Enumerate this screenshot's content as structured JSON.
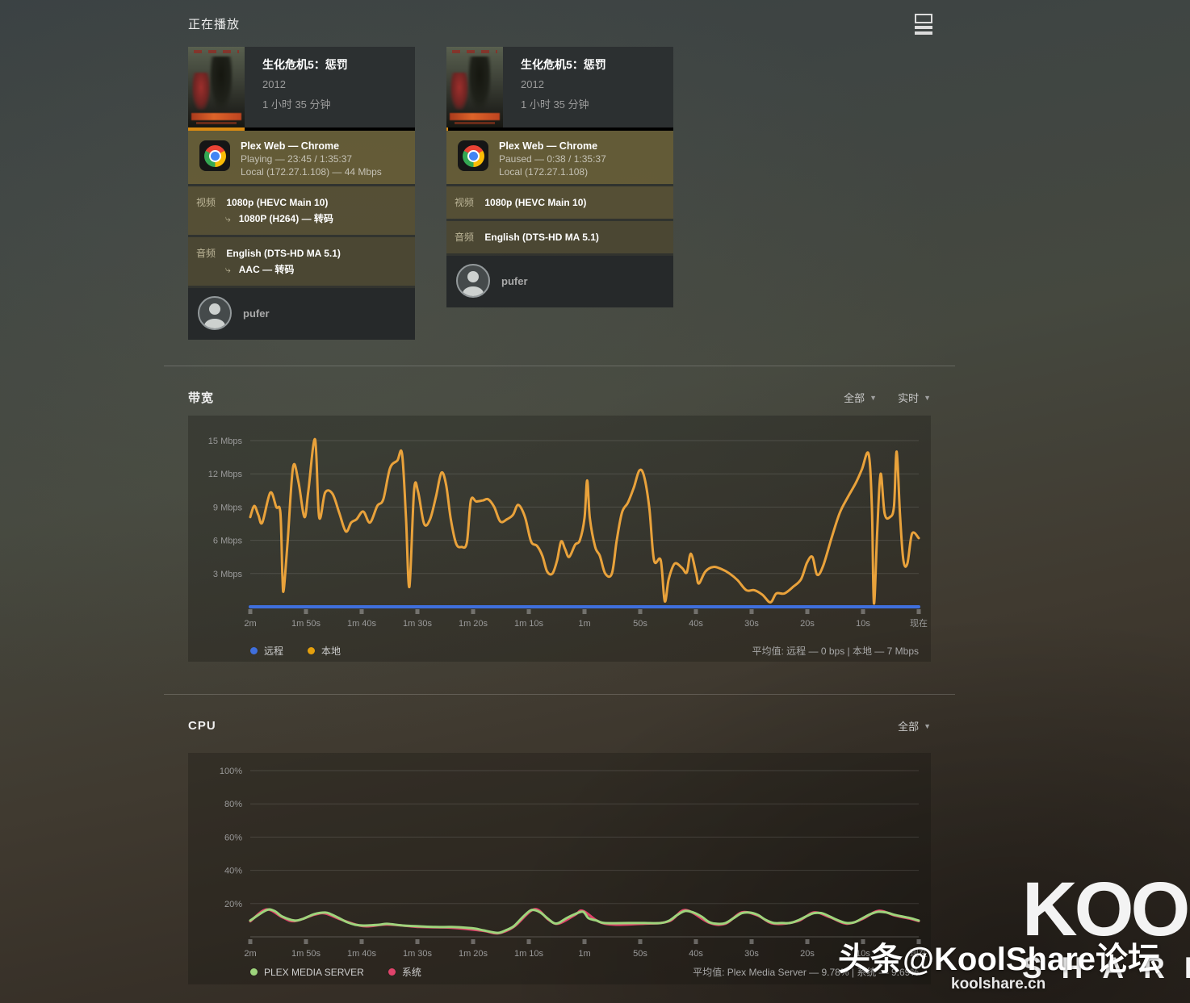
{
  "page": {
    "title": "正在播放"
  },
  "sessions": [
    {
      "title": "生化危机5：惩罚",
      "year": "2012",
      "duration": "1 小时 35 分钟",
      "player_line": "Plex Web  —  Chrome",
      "status_line": "Playing — 23:45 / 1:35:37",
      "network_line": "Local (172.27.1.108) — 44 Mbps",
      "progress_percent": 24.8,
      "video_label": "视频",
      "video_source": "1080p (HEVC Main 10)",
      "video_transcode": "1080P (H264) — 转码",
      "audio_label": "音频",
      "audio_source": "English (DTS-HD MA 5.1)",
      "audio_transcode": "AAC — 转码",
      "user": "pufer"
    },
    {
      "title": "生化危机5：惩罚",
      "year": "2012",
      "duration": "1 小时 35 分钟",
      "player_line": "Plex Web  —  Chrome",
      "status_line": "Paused — 0:38 / 1:35:37",
      "network_line": "Local (172.27.1.108)",
      "progress_percent": 0.8,
      "video_label": "视频",
      "video_source": "1080p (HEVC Main 10)",
      "audio_label": "音频",
      "audio_source": "English (DTS-HD MA 5.1)",
      "user": "pufer"
    }
  ],
  "bandwidth_section": {
    "title": "带宽",
    "filter_all": "全部",
    "filter_realtime": "实时",
    "legend": [
      {
        "label": "远程",
        "color": "#3f6fdd"
      },
      {
        "label": "本地",
        "color": "#e5a00d"
      }
    ],
    "average_text": "平均值: 远程 — 0 bps | 本地 — 7 Mbps"
  },
  "cpu_section": {
    "title": "CPU",
    "filter_all": "全部",
    "legend": [
      {
        "label": "PLEX MEDIA SERVER",
        "color": "#9ed47c"
      },
      {
        "label": "系统",
        "color": "#e0436b"
      }
    ],
    "average_text": "平均值: Plex Media Server — 9.78% | 系统 — 9.69%"
  },
  "chart_data": [
    {
      "type": "line",
      "title": "带宽",
      "unit": "Mbps",
      "ylim": [
        0,
        15
      ],
      "grid": true,
      "legend_position": "bottom-left",
      "y_ticks": [
        {
          "value": 3,
          "label": "3 Mbps"
        },
        {
          "value": 6,
          "label": "6 Mbps"
        },
        {
          "value": 9,
          "label": "9 Mbps"
        },
        {
          "value": 12,
          "label": "12 Mbps"
        },
        {
          "value": 15,
          "label": "15 Mbps"
        }
      ],
      "x_axis_labels": [
        "2m",
        "1m 50s",
        "1m 40s",
        "1m 30s",
        "1m 20s",
        "1m 10s",
        "1m",
        "50s",
        "40s",
        "30s",
        "20s",
        "10s",
        "现在"
      ],
      "series": [
        {
          "name": "远程",
          "color": "#3f6fdd",
          "width": 4,
          "points": [
            [
              0,
              0
            ],
            [
              100,
              0
            ]
          ]
        },
        {
          "name": "本地",
          "color": "#e9a23b",
          "width": 3,
          "points": [
            [
              0,
              8.1
            ],
            [
              0.6,
              9.1
            ],
            [
              1.2,
              8.3
            ],
            [
              1.8,
              7.6
            ],
            [
              3,
              10.3
            ],
            [
              3.9,
              9
            ],
            [
              4.5,
              8.5
            ],
            [
              4.8,
              3
            ],
            [
              5,
              1.5
            ],
            [
              5.6,
              6
            ],
            [
              6.4,
              12.6
            ],
            [
              7.2,
              11.3
            ],
            [
              8.1,
              8.1
            ],
            [
              8.7,
              10.5
            ],
            [
              9.7,
              15.1
            ],
            [
              10.3,
              8.1
            ],
            [
              11.2,
              10.3
            ],
            [
              12.3,
              10.2
            ],
            [
              13.3,
              8.5
            ],
            [
              14.3,
              6.8
            ],
            [
              15.1,
              7.6
            ],
            [
              15.9,
              7.9
            ],
            [
              16.9,
              8.6
            ],
            [
              17.9,
              7.6
            ],
            [
              19,
              9.1
            ],
            [
              19.9,
              9.7
            ],
            [
              20.9,
              12.5
            ],
            [
              22,
              13.2
            ],
            [
              22.7,
              13.8
            ],
            [
              23.3,
              8
            ],
            [
              23.8,
              1.8
            ],
            [
              24.5,
              10.5
            ],
            [
              25.1,
              10.4
            ],
            [
              26,
              7.5
            ],
            [
              26.9,
              7.9
            ],
            [
              27.8,
              10
            ],
            [
              28.6,
              12.1
            ],
            [
              29.3,
              11
            ],
            [
              30,
              7.9
            ],
            [
              30.8,
              5.7
            ],
            [
              31.6,
              5.4
            ],
            [
              32.4,
              5.8
            ],
            [
              33,
              9.6
            ],
            [
              33.8,
              9.5
            ],
            [
              34.8,
              9.6
            ],
            [
              35.6,
              9.7
            ],
            [
              36.5,
              9
            ],
            [
              37.4,
              7.7
            ],
            [
              38.4,
              7.9
            ],
            [
              39.3,
              8.3
            ],
            [
              40.1,
              9.2
            ],
            [
              41.1,
              8.1
            ],
            [
              42,
              5.9
            ],
            [
              42.9,
              5.5
            ],
            [
              43.7,
              4.6
            ],
            [
              44.4,
              3.2
            ],
            [
              45.2,
              3
            ],
            [
              45.9,
              4.2
            ],
            [
              46.5,
              5.9
            ],
            [
              47.1,
              5.2
            ],
            [
              47.7,
              4.5
            ],
            [
              48.6,
              5.6
            ],
            [
              49.3,
              6
            ],
            [
              50,
              8
            ],
            [
              50.4,
              11.4
            ],
            [
              50.8,
              8
            ],
            [
              51.6,
              5.4
            ],
            [
              52.3,
              4.6
            ],
            [
              53.1,
              3
            ],
            [
              54.1,
              3
            ],
            [
              54.8,
              5.9
            ],
            [
              55.6,
              8.5
            ],
            [
              56.5,
              9.4
            ],
            [
              57.4,
              10.8
            ],
            [
              58.2,
              12.3
            ],
            [
              58.9,
              11.8
            ],
            [
              59.7,
              8.9
            ],
            [
              60.4,
              4.2
            ],
            [
              61.4,
              4.2
            ],
            [
              62,
              0.5
            ],
            [
              62.6,
              2.5
            ],
            [
              63.5,
              3.9
            ],
            [
              64.6,
              3.5
            ],
            [
              65.3,
              3.1
            ],
            [
              65.9,
              4.8
            ],
            [
              66.7,
              3
            ],
            [
              67.1,
              2.1
            ],
            [
              68.1,
              3.2
            ],
            [
              69.3,
              3.6
            ],
            [
              70.5,
              3.4
            ],
            [
              71.7,
              3
            ],
            [
              72.9,
              2.4
            ],
            [
              74.2,
              1.5
            ],
            [
              75.4,
              1.5
            ],
            [
              76.6,
              1.1
            ],
            [
              77.8,
              0.4
            ],
            [
              78.7,
              1.2
            ],
            [
              79.9,
              1.2
            ],
            [
              81.2,
              1.8
            ],
            [
              82.4,
              2.5
            ],
            [
              83.3,
              4
            ],
            [
              84.1,
              4.5
            ],
            [
              84.8,
              2.9
            ],
            [
              85.7,
              3.7
            ],
            [
              87,
              6.3
            ],
            [
              88.2,
              8.5
            ],
            [
              89.4,
              9.9
            ],
            [
              90.6,
              11.2
            ],
            [
              91.5,
              12.4
            ],
            [
              92.5,
              13.8
            ],
            [
              93,
              8.9
            ],
            [
              93.3,
              0.3
            ],
            [
              93.8,
              7
            ],
            [
              94.3,
              12
            ],
            [
              94.9,
              8.4
            ],
            [
              95.7,
              8.1
            ],
            [
              96.3,
              9.1
            ],
            [
              96.7,
              14
            ],
            [
              97.2,
              8.3
            ],
            [
              97.7,
              4.2
            ],
            [
              98.3,
              3.9
            ],
            [
              99,
              6.6
            ],
            [
              100,
              6.2
            ]
          ]
        }
      ]
    },
    {
      "type": "line",
      "title": "CPU",
      "unit": "%",
      "ylim": [
        0,
        100
      ],
      "grid": true,
      "legend_position": "bottom-left",
      "y_ticks": [
        {
          "value": 20,
          "label": "20%"
        },
        {
          "value": 40,
          "label": "40%"
        },
        {
          "value": 60,
          "label": "60%"
        },
        {
          "value": 80,
          "label": "80%"
        },
        {
          "value": 100,
          "label": "100%"
        }
      ],
      "x_axis_labels": [
        "2m",
        "1m 50s",
        "1m 40s",
        "1m 30s",
        "1m 20s",
        "1m 10s",
        "1m",
        "50s",
        "40s",
        "30s",
        "20s",
        "10s",
        "现在"
      ],
      "series": [
        {
          "name": "系统",
          "color": "#e0436b",
          "width": 3,
          "points": [
            [
              0,
              9.3
            ],
            [
              2.4,
              16.5
            ],
            [
              4.8,
              11.8
            ],
            [
              6.6,
              9.4
            ],
            [
              9.6,
              13.3
            ],
            [
              11.2,
              14.1
            ],
            [
              13.3,
              10.8
            ],
            [
              16.9,
              6.4
            ],
            [
              20.5,
              7.4
            ],
            [
              25.3,
              5.9
            ],
            [
              30.1,
              5.5
            ],
            [
              34.9,
              3.6
            ],
            [
              37,
              2.1
            ],
            [
              39.4,
              5.9
            ],
            [
              42.5,
              16.6
            ],
            [
              44.6,
              10.3
            ],
            [
              46.1,
              7.9
            ],
            [
              48.6,
              13.2
            ],
            [
              49.8,
              15.6
            ],
            [
              53,
              7.9
            ],
            [
              59,
              7.9
            ],
            [
              62.7,
              9.4
            ],
            [
              65.1,
              16.1
            ],
            [
              68.7,
              8.4
            ],
            [
              71.1,
              7.9
            ],
            [
              73.5,
              14.7
            ],
            [
              75.9,
              12.8
            ],
            [
              78.3,
              7.9
            ],
            [
              81.9,
              9.4
            ],
            [
              84.3,
              14.7
            ],
            [
              86.7,
              11.8
            ],
            [
              89.2,
              7.9
            ],
            [
              91.6,
              10.8
            ],
            [
              94,
              15.7
            ],
            [
              96.4,
              12.8
            ],
            [
              98.8,
              10.8
            ],
            [
              100,
              9.4
            ]
          ]
        },
        {
          "name": "PLEX MEDIA SERVER",
          "color": "#9ed47c",
          "width": 3,
          "points": [
            [
              0,
              9.8
            ],
            [
              2.4,
              16
            ],
            [
              3.6,
              15.6
            ],
            [
              4.8,
              12.2
            ],
            [
              6.6,
              9.8
            ],
            [
              7.8,
              10.7
            ],
            [
              9.6,
              13.7
            ],
            [
              11.2,
              14.6
            ],
            [
              12,
              13.7
            ],
            [
              13.3,
              11.2
            ],
            [
              14.5,
              8.8
            ],
            [
              15.7,
              7.3
            ],
            [
              16.9,
              6.8
            ],
            [
              19.3,
              7.3
            ],
            [
              20.5,
              7.8
            ],
            [
              22.9,
              6.8
            ],
            [
              25.3,
              6.3
            ],
            [
              27.7,
              5.9
            ],
            [
              30.1,
              5.9
            ],
            [
              32.5,
              5.4
            ],
            [
              33.7,
              4.9
            ],
            [
              34.9,
              3.9
            ],
            [
              37,
              2.4
            ],
            [
              38.2,
              3.9
            ],
            [
              39.4,
              6.3
            ],
            [
              40.6,
              11.2
            ],
            [
              41.8,
              15.6
            ],
            [
              42.5,
              16.1
            ],
            [
              43.4,
              14.6
            ],
            [
              44.6,
              10.7
            ],
            [
              45.4,
              8.3
            ],
            [
              46.1,
              8.3
            ],
            [
              47.3,
              11.2
            ],
            [
              48.6,
              13.7
            ],
            [
              49.8,
              15.1
            ],
            [
              50.6,
              11.2
            ],
            [
              51.8,
              9.8
            ],
            [
              53,
              8.3
            ],
            [
              56.6,
              8.3
            ],
            [
              59,
              8.3
            ],
            [
              61.4,
              8.3
            ],
            [
              62.7,
              9.8
            ],
            [
              63.9,
              13.2
            ],
            [
              65.1,
              15.6
            ],
            [
              66.3,
              14.6
            ],
            [
              67.5,
              12.2
            ],
            [
              68.7,
              8.8
            ],
            [
              69.9,
              7.8
            ],
            [
              71.1,
              8.3
            ],
            [
              72.3,
              11.2
            ],
            [
              73.5,
              14.2
            ],
            [
              74.7,
              14.6
            ],
            [
              75.9,
              13.2
            ],
            [
              77.1,
              10.2
            ],
            [
              78.3,
              8.3
            ],
            [
              79.5,
              8.3
            ],
            [
              80.7,
              8.3
            ],
            [
              81.9,
              9.8
            ],
            [
              83.1,
              12.2
            ],
            [
              84.3,
              14.2
            ],
            [
              85.5,
              14.2
            ],
            [
              86.7,
              12.2
            ],
            [
              88,
              9.8
            ],
            [
              89.2,
              8.3
            ],
            [
              90.4,
              8.8
            ],
            [
              91.6,
              11.2
            ],
            [
              92.8,
              13.7
            ],
            [
              94,
              15.1
            ],
            [
              95.2,
              14.6
            ],
            [
              96.4,
              13.2
            ],
            [
              97.6,
              12.2
            ],
            [
              98.8,
              11.2
            ],
            [
              100,
              9.8
            ]
          ]
        }
      ]
    }
  ],
  "watermark": {
    "line1": "头条@KoolShare论坛",
    "site": "koolshare.cn",
    "logo_top": "KOOL",
    "logo_bottom": "SHARE"
  }
}
